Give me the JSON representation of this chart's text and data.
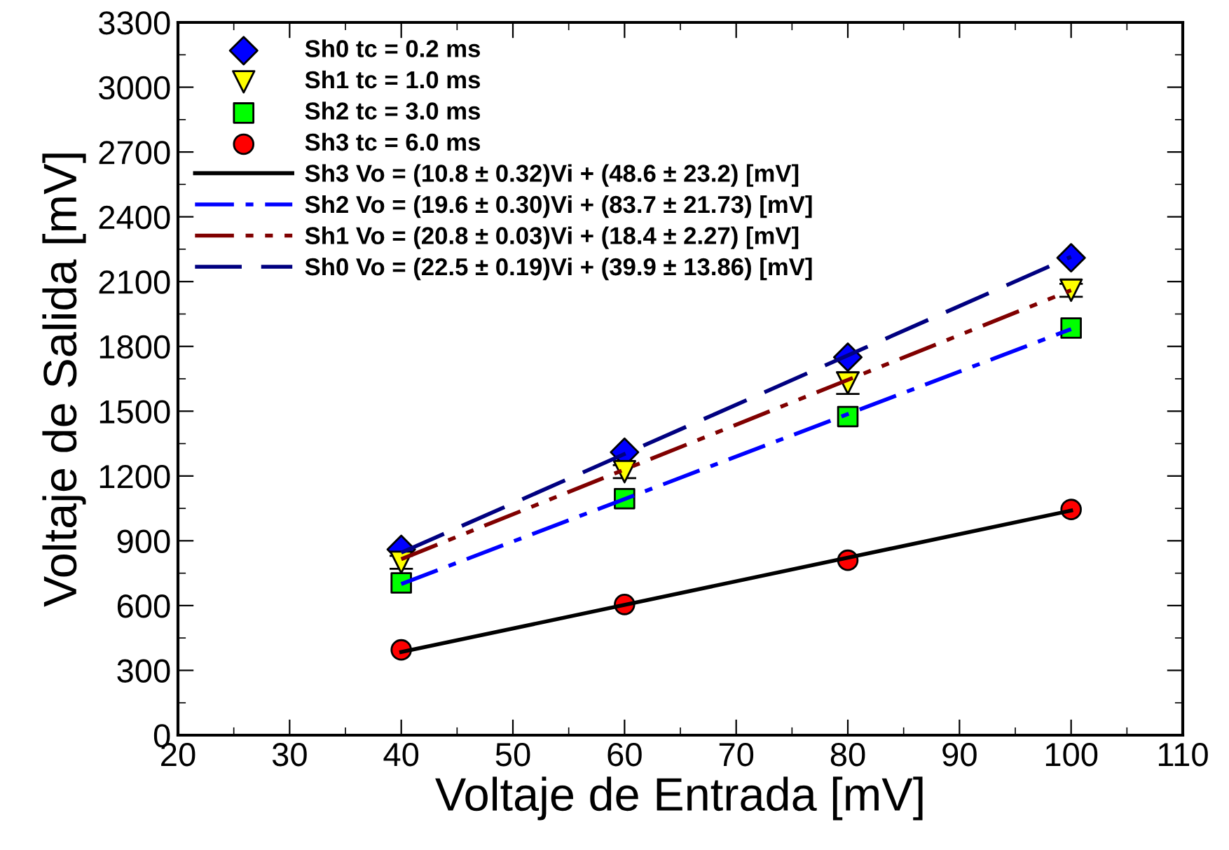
{
  "chart_data": {
    "type": "scatter",
    "xlabel": "Voltaje de Entrada [mV]",
    "ylabel": "Voltaje de Salida [mV]",
    "xlim": [
      20,
      110
    ],
    "xticks": [
      20,
      30,
      40,
      50,
      60,
      70,
      80,
      90,
      100,
      110
    ],
    "ylim": [
      0,
      3300
    ],
    "yticks": [
      0,
      300,
      600,
      900,
      1200,
      1500,
      1800,
      2100,
      2400,
      2700,
      3000,
      3300
    ],
    "grid": false,
    "legend": "top left",
    "series": [
      {
        "name": "Sh0 tc = 0.2 ms",
        "marker": "diamond",
        "color": "#0000ff",
        "x": [
          40,
          60,
          80,
          100
        ],
        "values": [
          860,
          1310,
          1750,
          2210
        ]
      },
      {
        "name": "Sh1 tc = 1.0 ms",
        "marker": "triangle",
        "color": "#ffff00",
        "x": [
          40,
          60,
          80,
          100
        ],
        "values": [
          800,
          1220,
          1630,
          2060
        ],
        "errors": [
          30,
          30,
          50,
          30
        ]
      },
      {
        "name": "Sh2 tc = 3.0 ms",
        "marker": "square",
        "color": "#00ff00",
        "x": [
          40,
          60,
          80,
          100
        ],
        "values": [
          705,
          1095,
          1475,
          1885
        ]
      },
      {
        "name": "Sh3 tc = 6.0 ms",
        "marker": "circle",
        "color": "#ff0000",
        "x": [
          40,
          60,
          80,
          100
        ],
        "values": [
          395,
          605,
          810,
          1045
        ]
      },
      {
        "name": "Sh3 Vo = (10.8 ± 0.32)Vi + (48.6 ± 23.2) [mV]",
        "type": "line",
        "line_style": "solid",
        "color": "#000000",
        "x": [
          40,
          100
        ],
        "values": [
          385,
          1040
        ]
      },
      {
        "name": "Sh2 Vo = (19.6 ± 0.30)Vi + (83.7 ± 21.73) [mV]",
        "type": "line",
        "line_style": "dashdot",
        "color": "#0000ff",
        "x": [
          40,
          100
        ],
        "values": [
          700,
          1880
        ]
      },
      {
        "name": "Sh1 Vo = (20.8 ± 0.03)Vi + (18.4 ± 2.27) [mV]",
        "type": "line",
        "line_style": "dashdotdot",
        "color": "#800000",
        "x": [
          40,
          100
        ],
        "values": [
          815,
          2060
        ]
      },
      {
        "name": "Sh0 Vo = (22.5 ± 0.19)Vi + (39.9 ± 13.86) [mV]",
        "type": "line",
        "line_style": "dashed",
        "color": "#000080",
        "x": [
          40,
          100
        ],
        "values": [
          845,
          2215
        ]
      }
    ]
  }
}
